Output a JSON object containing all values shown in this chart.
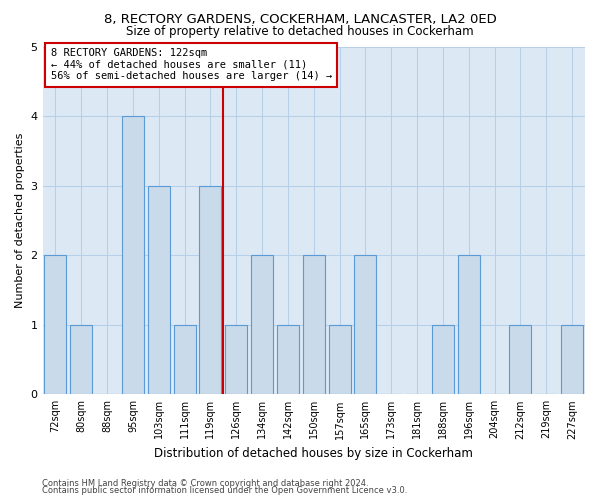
{
  "title_line1": "8, RECTORY GARDENS, COCKERHAM, LANCASTER, LA2 0ED",
  "title_line2": "Size of property relative to detached houses in Cockerham",
  "xlabel": "Distribution of detached houses by size in Cockerham",
  "ylabel": "Number of detached properties",
  "categories": [
    "72sqm",
    "80sqm",
    "88sqm",
    "95sqm",
    "103sqm",
    "111sqm",
    "119sqm",
    "126sqm",
    "134sqm",
    "142sqm",
    "150sqm",
    "157sqm",
    "165sqm",
    "173sqm",
    "181sqm",
    "188sqm",
    "196sqm",
    "204sqm",
    "212sqm",
    "219sqm",
    "227sqm"
  ],
  "values": [
    2,
    1,
    0,
    4,
    3,
    1,
    3,
    1,
    2,
    1,
    2,
    1,
    2,
    0,
    0,
    1,
    2,
    0,
    1,
    0,
    1
  ],
  "bar_color": "#c9daea",
  "bar_edge_color": "#5b9bd5",
  "vline_color": "#cc0000",
  "annotation_text": "8 RECTORY GARDENS: 122sqm\n← 44% of detached houses are smaller (11)\n56% of semi-detached houses are larger (14) →",
  "annotation_box_color": "#ffffff",
  "annotation_box_edge_color": "#cc0000",
  "ylim": [
    0,
    5
  ],
  "yticks": [
    0,
    1,
    2,
    3,
    4,
    5
  ],
  "background_color": "#ffffff",
  "plot_bg_color": "#dce9f5",
  "grid_color": "#b8cfe8",
  "footer_line1": "Contains HM Land Registry data © Crown copyright and database right 2024.",
  "footer_line2": "Contains public sector information licensed under the Open Government Licence v3.0.",
  "title_fontsize": 9.5,
  "subtitle_fontsize": 8.5,
  "xlabel_fontsize": 8.5,
  "ylabel_fontsize": 8,
  "tick_fontsize": 7,
  "footer_fontsize": 6,
  "annotation_fontsize": 7.5,
  "vline_x_index": 7
}
